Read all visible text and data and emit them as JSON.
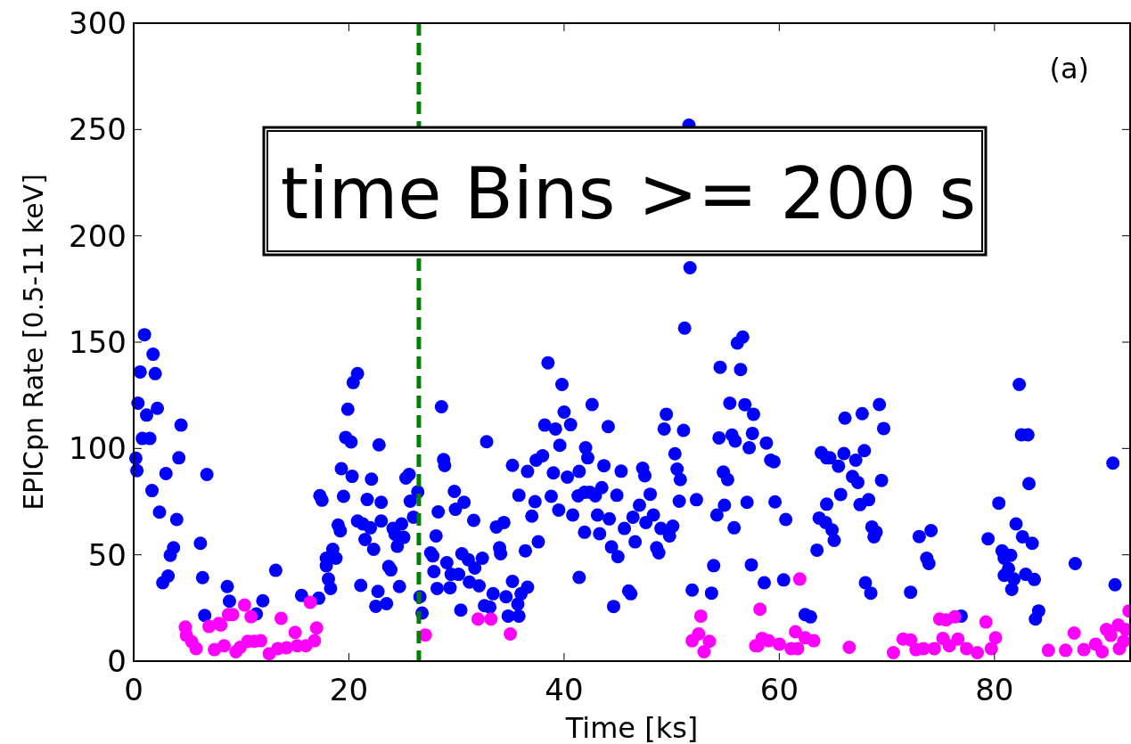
{
  "chart_data": {
    "type": "scatter",
    "xlabel": "Time [ks]",
    "ylabel": "EPICpn Rate [0.5-11 keV]",
    "annotations": [
      "(a)",
      "time Bins >= 200 s"
    ],
    "xlim": [
      0,
      92.6
    ],
    "ylim": [
      0,
      300
    ],
    "xticks": [
      0,
      20,
      40,
      60,
      80
    ],
    "yticks": [
      0,
      50,
      100,
      150,
      200,
      250,
      300
    ],
    "grid": false,
    "marker": "circle",
    "ref_lines": [
      {
        "axis": "x",
        "value": 26.5,
        "color": "#007f00",
        "line_style": "dashed"
      }
    ],
    "series": [
      {
        "color": "#0000ff",
        "x": [
          1.0,
          0.6,
          1.8,
          2.0,
          0.4,
          1.2,
          2.2,
          0.8,
          1.5,
          0.2,
          0.3,
          4.4,
          4.2,
          3.0,
          1.7,
          2.4,
          4.0,
          3.7,
          3.4,
          2.7,
          3.2,
          6.8,
          6.2,
          6.4,
          8.7,
          8.9,
          6.6,
          11.4,
          12,
          13.2,
          15.6,
          17.2,
          17.3,
          17.5,
          17.9,
          17.9,
          18.1,
          18.3,
          18.5,
          18.8,
          19,
          19.2,
          19.3,
          19.5,
          19.9,
          19.7,
          20.2,
          20.4,
          20.8,
          20.3,
          21.1,
          20.8,
          21.3,
          21.5,
          22,
          21.7,
          22.1,
          22.8,
          22.3,
          22.5,
          22.7,
          23,
          23,
          23.5,
          23.9,
          23.7,
          24.3,
          24.1,
          24.9,
          25.1,
          24.5,
          24.7,
          25.3,
          25.6,
          25.7,
          26,
          26.4,
          26.6,
          26.8,
          28.6,
          28.8,
          28.9,
          27.6,
          27.8,
          27.9,
          28.2,
          28.3,
          28.1,
          29.1,
          29.5,
          29.4,
          29.8,
          29.9,
          30.7,
          30.2,
          30.5,
          31.1,
          30.4,
          31.2,
          31.6,
          31.7,
          32.1,
          32.4,
          32.8,
          32.6,
          33.1,
          33.4,
          33.7,
          34.4,
          34,
          34.1,
          34.6,
          34.8,
          35.2,
          35.7,
          35.8,
          36,
          36.6,
          35.2,
          35.8,
          36.6,
          37.3,
          37,
          36.4,
          37.6,
          37.4,
          38,
          38.2,
          38.5,
          39.2,
          39,
          38.8,
          39.5,
          39.6,
          39.8,
          40,
          40.6,
          40.3,
          40.8,
          41.4,
          41.4,
          41.3,
          41.9,
          42.6,
          42,
          42.2,
          41.9,
          42.4,
          42.9,
          43.1,
          43.3,
          43.5,
          43.7,
          44.1,
          44.2,
          44.4,
          44.9,
          45,
          44.6,
          45.3,
          45.6,
          46,
          46.2,
          46.4,
          46.6,
          47,
          47.3,
          47.5,
          48,
          47.6,
          48.3,
          48.6,
          48.8,
          49,
          49.5,
          49.3,
          49.8,
          50.1,
          50.3,
          50.5,
          50.8,
          50.7,
          51.1,
          51.2,
          51.6,
          51.7,
          52.3,
          51.9,
          53.7,
          53.9,
          54.2,
          54.5,
          54.4,
          54.8,
          55.2,
          54.9,
          55.4,
          55.6,
          55.9,
          55.8,
          56.1,
          56.6,
          56.4,
          56.8,
          57,
          57.2,
          57.4,
          57.5,
          57.6,
          58.6,
          58.8,
          59.2,
          59.5,
          59.6,
          60.6,
          60.4,
          62.4,
          62.9,
          63.5,
          63.7,
          63.9,
          64.4,
          64.7,
          64.4,
          64.3,
          64.9,
          65.1,
          65.5,
          66,
          65.7,
          66.1,
          66.8,
          67.1,
          67.3,
          67.5,
          67.7,
          67.9,
          68.3,
          68.6,
          69,
          68.8,
          68,
          68.5,
          69.3,
          69.7,
          69.5,
          72.2,
          73,
          74.1,
          73.7,
          73.9,
          76.9,
          79.4,
          80.4,
          82.3,
          82.5,
          83.1,
          80.7,
          80.9,
          81.5,
          81.3,
          80.9,
          81.8,
          81.6,
          82,
          82.6,
          83.5,
          82.9,
          83.7,
          83.2,
          84.1,
          83.8,
          87.5,
          91,
          91.2
        ],
        "values": [
          153.5,
          136,
          144.3,
          135.2,
          121.3,
          115.7,
          118.9,
          104.7,
          104.7,
          95.4,
          89.6,
          111,
          95.6,
          88.2,
          80.2,
          70.1,
          66.6,
          53.3,
          49.8,
          36.9,
          40,
          87.8,
          55.4,
          39.3,
          35.1,
          28.2,
          21.5,
          22.2,
          28.4,
          42.7,
          30.9,
          29.6,
          77.8,
          75.7,
          48.4,
          44.9,
          38.6,
          34.2,
          52.6,
          48.4,
          64,
          61.3,
          90.5,
          77.5,
          118.5,
          105.2,
          103.1,
          131,
          135.2,
          86.9,
          35.6,
          65.9,
          64.5,
          57.2,
          62.7,
          76,
          85.6,
          101.7,
          52.6,
          25.8,
          32.8,
          74.7,
          65.9,
          27,
          42.9,
          44.5,
          59.6,
          62.4,
          64.5,
          58.2,
          54,
          35.1,
          86.1,
          87.8,
          75.2,
          67.7,
          79.6,
          30.3,
          22.6,
          119.6,
          94.8,
          92,
          50.9,
          49.5,
          42.1,
          34.2,
          70.2,
          58.9,
          46.3,
          40.8,
          34.5,
          79.8,
          71.4,
          74.7,
          40.8,
          50.5,
          47.7,
          24,
          37.2,
          66.2,
          43.8,
          35.4,
          48.4,
          103.2,
          26.1,
          25.4,
          31.7,
          63.1,
          65.2,
          53.3,
          50.5,
          30.3,
          21.2,
          37.5,
          26.8,
          21.2,
          31.7,
          34.8,
          92.1,
          78,
          89.2,
          75,
          68.2,
          51.9,
          56.1,
          94.5,
          96.6,
          111,
          140.3,
          109.2,
          88.5,
          77.5,
          71,
          101.5,
          130.1,
          117.1,
          111.2,
          86.5,
          68.7,
          39.4,
          89.2,
          77.7,
          79.4,
          120.7,
          100.3,
          95.6,
          60.6,
          79.4,
          77.7,
          68.7,
          59.9,
          81.6,
          91.9,
          110.3,
          66.9,
          53.7,
          78,
          49.1,
          25.7,
          89.3,
          62.4,
          33,
          31.7,
          67.7,
          56.1,
          73.3,
          90.7,
          87.2,
          78.5,
          65.2,
          68.7,
          53.3,
          50.9,
          62.4,
          116.1,
          109.2,
          58.9,
          63.5,
          97.5,
          90.3,
          85.4,
          75.2,
          108.5,
          156.6,
          252,
          185,
          75.9,
          33.4,
          32,
          44.9,
          68.7,
          138.2,
          105,
          88.9,
          85.4,
          73.3,
          121.3,
          106.3,
          103.5,
          62.7,
          149.6,
          152.4,
          137.1,
          120.6,
          74.7,
          100.3,
          45.3,
          107.1,
          116.1,
          36.9,
          102.6,
          94.5,
          93.8,
          74.9,
          66.6,
          38.2,
          21.9,
          20.8,
          52.2,
          67.3,
          98,
          95.6,
          95.6,
          73.8,
          65.2,
          61.7,
          56.8,
          91.7,
          97.6,
          78.4,
          114.3,
          86.8,
          94.5,
          84,
          73.6,
          116.4,
          99,
          75.9,
          63.1,
          60.7,
          58.5,
          36.9,
          32,
          120.7,
          109.4,
          85,
          32.4,
          58.6,
          61.4,
          48.4,
          45.9,
          21.2,
          57.5,
          74.3,
          130.1,
          106.4,
          106.4,
          51.9,
          48.4,
          49.8,
          43.5,
          40.3,
          38.6,
          33.7,
          64.5,
          58.5,
          55.4,
          40.8,
          38.4,
          83.5,
          23.6,
          19.8,
          45.9,
          93.1,
          35.9
        ]
      },
      {
        "color": "#ff00ff",
        "x": [
          4.8,
          4.9,
          5.4,
          5.8,
          7,
          7.5,
          7.9,
          8.1,
          8.4,
          8.8,
          9.2,
          9.5,
          9.9,
          10.3,
          10.9,
          10.6,
          11.2,
          11.8,
          12.6,
          13.4,
          13.7,
          14.2,
          15,
          15.2,
          16,
          16.4,
          17,
          16.8,
          27.1,
          32,
          33.2,
          35,
          52.7,
          52.5,
          51.9,
          53.5,
          53,
          57.8,
          58.2,
          58.4,
          59,
          58,
          61.5,
          61.9,
          60,
          61.1,
          61.7,
          62.4,
          63.2,
          66.5,
          70.6,
          71.5,
          72.2,
          72.7,
          73.4,
          74.4,
          74.9,
          75.5,
          76.3,
          75.2,
          75.8,
          76.6,
          77.4,
          78.4,
          79.2,
          80.1,
          79.7,
          85,
          86.6,
          87.4,
          88.3,
          89.4,
          90,
          90.4,
          90.8,
          91.5,
          91.6,
          92,
          92.5,
          92.2
        ],
        "values": [
          16,
          12.1,
          9.1,
          5.9,
          16.3,
          5.4,
          17.7,
          17,
          7.2,
          21.9,
          21.9,
          4.4,
          6.5,
          26.4,
          20.9,
          9.3,
          9.3,
          9.6,
          3.5,
          5.9,
          20.1,
          6.3,
          13.5,
          7.2,
          7.2,
          27.7,
          15.6,
          9.6,
          12.3,
          19.8,
          19.8,
          12.8,
          21.2,
          12.8,
          9.6,
          9.3,
          4.4,
          7.2,
          24.4,
          10.7,
          9.6,
          7.2,
          13.8,
          38.6,
          8,
          5.9,
          5.9,
          11,
          9.6,
          6.5,
          4,
          10.4,
          10,
          5.4,
          5.9,
          5.9,
          19.8,
          19.4,
          20.8,
          10.7,
          7.2,
          10.4,
          5.9,
          4,
          18.4,
          11,
          5.9,
          5.1,
          5.1,
          13.2,
          5.4,
          8,
          4.4,
          14.9,
          12.1,
          17,
          5.9,
          9.3,
          23.6,
          14.9
        ]
      }
    ]
  }
}
